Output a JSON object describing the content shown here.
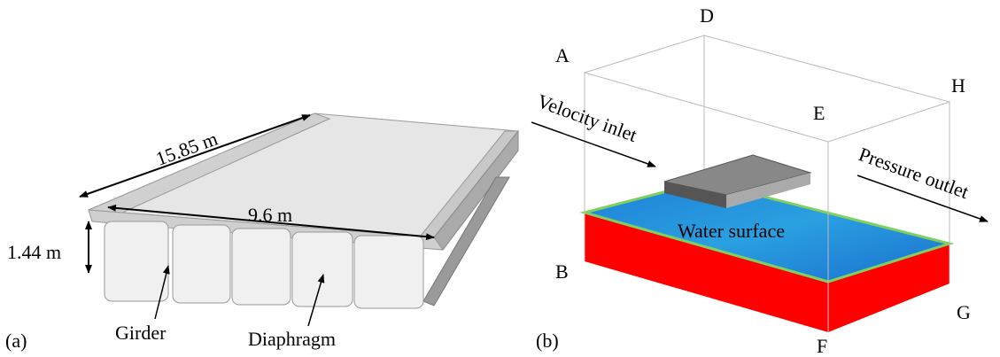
{
  "panel_a": {
    "tag": "(a)",
    "length_label": "15.85 m",
    "width_label": "9.6 m",
    "height_label": "1.44 m",
    "girder_label": "Girder",
    "diaphragm_label": "Diaphragm"
  },
  "panel_b": {
    "tag": "(b)",
    "corners": {
      "A": "A",
      "B": "B",
      "D": "D",
      "E": "E",
      "F": "F",
      "G": "G",
      "H": "H"
    },
    "inlet_label": "Velocity inlet",
    "outlet_label": "Pressure outlet",
    "water_label": "Water surface"
  }
}
